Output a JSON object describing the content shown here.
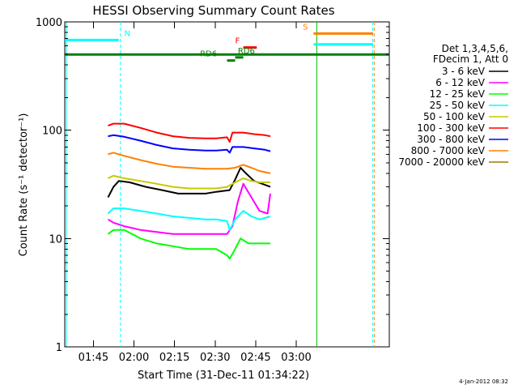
{
  "chart_data": {
    "type": "line",
    "title": "HESSI Observing Summary Count Rates",
    "xlabel": "Start Time (31-Dec-11 01:34:22)",
    "ylabel": "Count Rate (s⁻¹ detector⁻¹)",
    "yscale": "log",
    "ylim": [
      1,
      1000
    ],
    "xlim_minutes": [
      0,
      120
    ],
    "yticks": [
      {
        "label": "1",
        "v": 1
      },
      {
        "label": "10",
        "v": 10
      },
      {
        "label": "100",
        "v": 100
      },
      {
        "label": "1000",
        "v": 1000
      }
    ],
    "xticks": [
      {
        "label": "01:45",
        "t": 10.6
      },
      {
        "label": "02:00",
        "t": 25.6
      },
      {
        "label": "02:15",
        "t": 40.6
      },
      {
        "label": "02:30",
        "t": 55.6
      },
      {
        "label": "02:45",
        "t": 70.6
      },
      {
        "label": "03:00",
        "t": 85.6
      }
    ],
    "legend": {
      "placement": "right",
      "header": [
        "Det 1,3,4,5,6,",
        "FDecim 1, Att 0"
      ]
    },
    "series": [
      {
        "name": "3 - 6 keV",
        "color": "#000000",
        "x": [
          16,
          18,
          20,
          24,
          30,
          36,
          42,
          48,
          52,
          56,
          61,
          63,
          65,
          67,
          70,
          73,
          76
        ],
        "y": [
          24,
          30,
          34,
          33,
          30,
          28,
          26,
          26,
          26,
          27,
          28,
          35,
          45,
          40,
          34,
          32,
          30
        ]
      },
      {
        "name": "6 - 12 keV",
        "color": "#ff00ff",
        "x": [
          16,
          18,
          22,
          28,
          34,
          40,
          46,
          52,
          56,
          60,
          62,
          64,
          66,
          69,
          72,
          75,
          76
        ],
        "y": [
          15,
          14,
          13,
          12,
          11.5,
          11,
          11,
          11,
          11,
          11,
          13,
          22,
          32,
          24,
          18,
          17,
          26
        ]
      },
      {
        "name": "12 - 25 keV",
        "color": "#00ff00",
        "x": [
          16,
          18,
          22,
          28,
          34,
          40,
          46,
          52,
          56,
          60,
          61,
          63,
          65,
          68,
          72,
          76
        ],
        "y": [
          11,
          12,
          12,
          10,
          9,
          8.5,
          8,
          8,
          8,
          7,
          6.5,
          8,
          10,
          9,
          9,
          9
        ]
      },
      {
        "name": "25 - 50 keV",
        "color": "#00ffff",
        "x": [
          16,
          18,
          22,
          28,
          34,
          40,
          46,
          52,
          56,
          60,
          61,
          63,
          66,
          69,
          72,
          76
        ],
        "y": [
          17,
          19,
          19,
          18,
          17,
          16,
          15.5,
          15,
          15,
          14.5,
          12,
          15,
          18,
          16,
          15,
          16
        ]
      },
      {
        "name": "50 - 100 keV",
        "color": "#c8c800",
        "x": [
          16,
          18,
          22,
          28,
          34,
          40,
          46,
          52,
          56,
          60,
          63,
          66,
          69,
          72,
          76
        ],
        "y": [
          36,
          38,
          36,
          34,
          32,
          30,
          29,
          29,
          29,
          30,
          33,
          36,
          34,
          33,
          33
        ]
      },
      {
        "name": "100 - 300 keV",
        "color": "#ff0000",
        "x": [
          16,
          18,
          22,
          28,
          34,
          40,
          46,
          52,
          56,
          60,
          61,
          62,
          66,
          70,
          74,
          76
        ],
        "y": [
          110,
          115,
          115,
          105,
          95,
          88,
          85,
          84,
          84,
          86,
          78,
          95,
          95,
          92,
          90,
          88
        ]
      },
      {
        "name": "300 - 800 keV",
        "color": "#0000ff",
        "x": [
          16,
          18,
          22,
          28,
          34,
          40,
          46,
          52,
          56,
          60,
          61,
          62,
          66,
          70,
          74,
          76
        ],
        "y": [
          88,
          90,
          87,
          80,
          73,
          68,
          66,
          65,
          65,
          66,
          62,
          70,
          70,
          68,
          66,
          64
        ]
      },
      {
        "name": "800 - 7000 keV",
        "color": "#ff8000",
        "x": [
          16,
          18,
          22,
          28,
          34,
          40,
          46,
          52,
          56,
          60,
          63,
          66,
          69,
          72,
          76
        ],
        "y": [
          60,
          62,
          58,
          53,
          49,
          46,
          45,
          44,
          44,
          44,
          45,
          48,
          45,
          42,
          40
        ]
      },
      {
        "name": "7000 - 20000 keV",
        "color": "#a07800",
        "x": [],
        "y": []
      }
    ],
    "flags": [
      {
        "label": "N",
        "color": "#00ffff",
        "v": 680,
        "x0": 0,
        "x1": 20,
        "label_t": 22
      },
      {
        "label": "S",
        "color": "#ff8000",
        "v": 780,
        "x0": 92,
        "x1": 114,
        "label_t": 88
      },
      {
        "label": "",
        "color": "#00ffff",
        "v": 620,
        "x0": 92,
        "x1": 114
      },
      {
        "label": "F",
        "color": "#ff0000",
        "v": 580,
        "x0": 66,
        "x1": 71,
        "label_t": 63
      },
      {
        "label": "RD6",
        "color": "#008000",
        "v": 440,
        "x0": 60,
        "x1": 63,
        "label_t": 50
      },
      {
        "label": "RD6",
        "color": "#008000",
        "v": 470,
        "x0": 63,
        "x1": 66,
        "label_t": 64
      },
      {
        "label": "",
        "color": "#008000",
        "v": 500,
        "x0": 0,
        "x1": 120
      }
    ],
    "vlines": [
      {
        "t": 0.6,
        "color": "#00ffff",
        "dash": false
      },
      {
        "t": 20.6,
        "color": "#00ffff",
        "dash": true
      },
      {
        "t": 93.2,
        "color": "#00c000",
        "dash": false
      },
      {
        "t": 113.8,
        "color": "#00ffff",
        "dash": true
      },
      {
        "t": 114.4,
        "color": "#ff8000",
        "dash": true
      }
    ],
    "grid": false
  },
  "footer": {
    "timestamp": "4-Jan-2012 08:32"
  }
}
